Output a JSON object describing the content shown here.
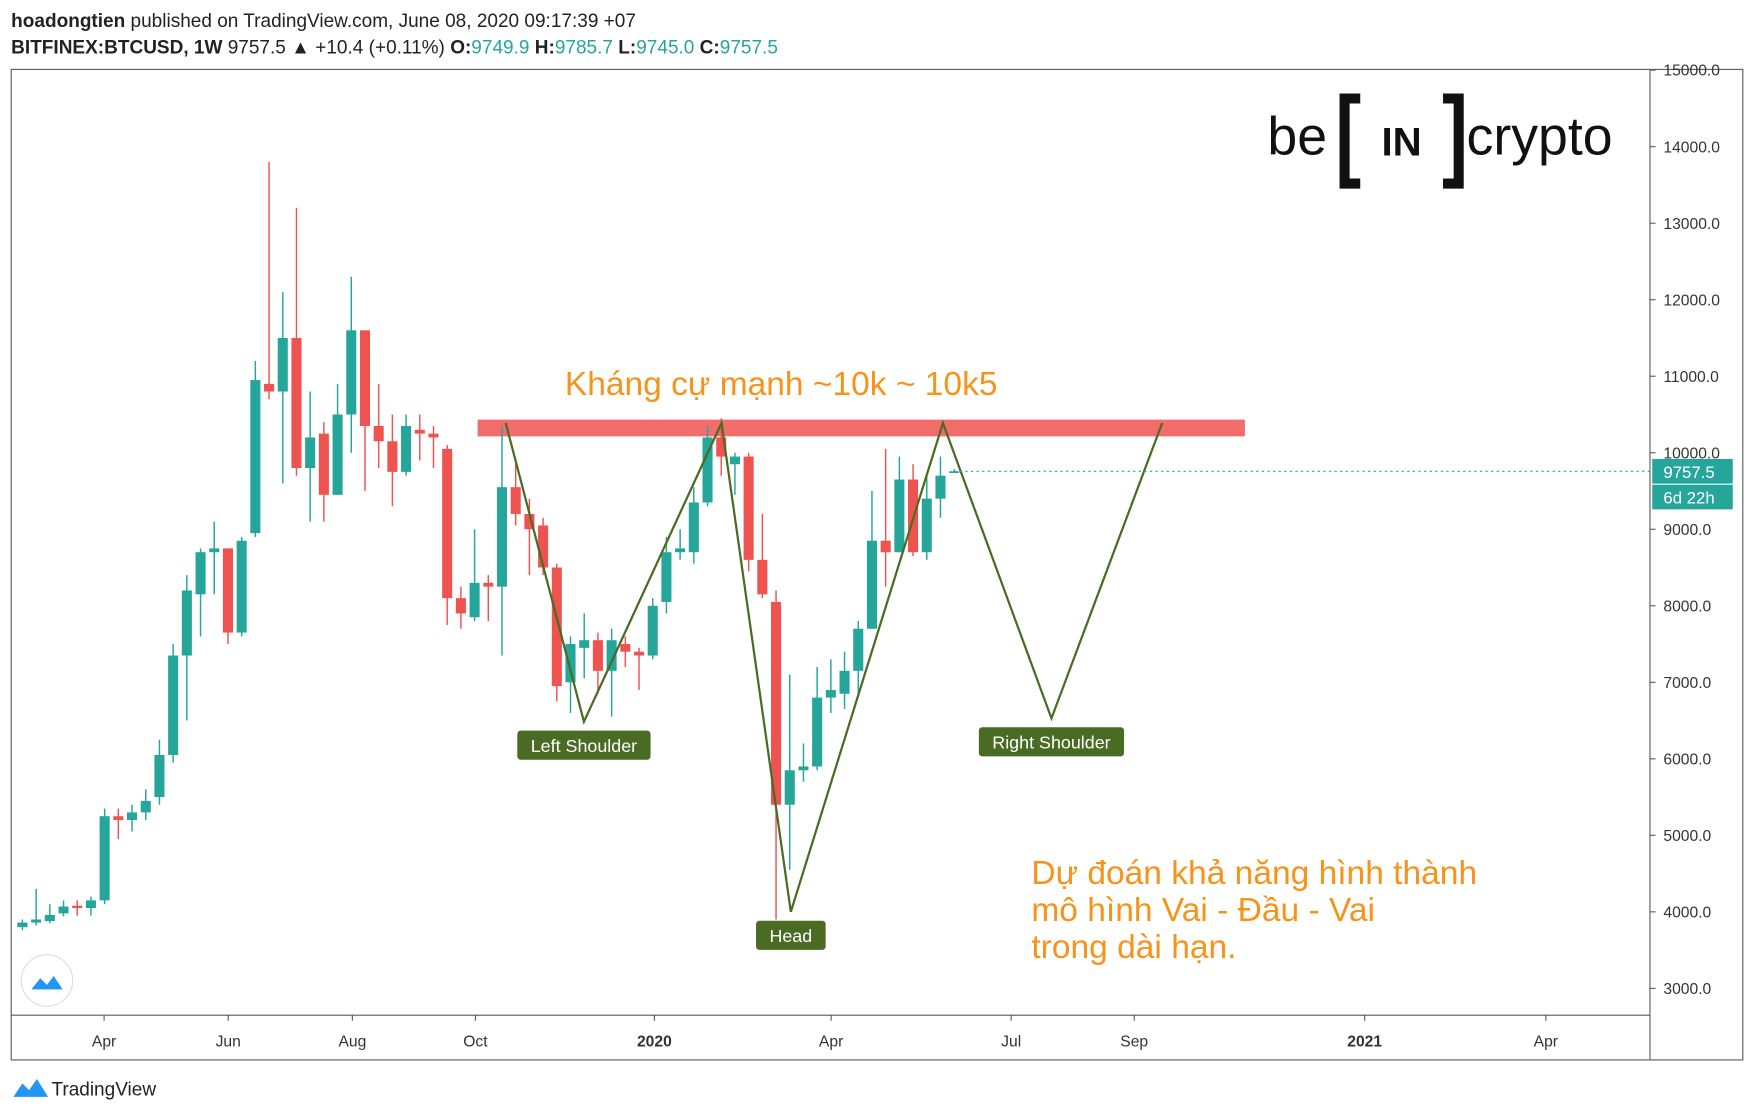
{
  "chart_data": {
    "type": "candlestick",
    "header": {
      "author": "hoadongtien",
      "published": "published on TradingView.com, June 08, 2020 09:17:39 +07",
      "symbol": "BITFINEX:BTCUSD, 1W",
      "last": "9757.5",
      "change": "▲ +10.4 (+0.11%)",
      "ohlc": [
        {
          "label": "O:",
          "value": "9749.9"
        },
        {
          "label": "H:",
          "value": "9785.7"
        },
        {
          "label": "L:",
          "value": "9745.0"
        },
        {
          "label": "C:",
          "value": "9757.5"
        }
      ]
    },
    "up_color": "#26a69a",
    "down_color": "#ef5350",
    "open": [
      3800,
      3860,
      3880,
      3980,
      4080,
      4050,
      4150,
      5250,
      5200,
      5300,
      5500,
      6050,
      7350,
      8150,
      8700,
      8750,
      7650,
      8950,
      10900,
      10800,
      11500,
      9800,
      10250,
      9450,
      10500,
      11600,
      10350,
      10150,
      9750,
      10300,
      10250,
      10050,
      8100,
      7850,
      8300,
      8250,
      9550,
      9200,
      9050,
      8500,
      7000,
      7450,
      7550,
      7150,
      7500,
      7400,
      7350,
      8050,
      8700,
      8700,
      9350,
      10200,
      9850,
      9950,
      8600,
      8050,
      5400,
      5850,
      5900,
      6800,
      6850,
      7150,
      7700,
      8850,
      8700,
      9650,
      8700,
      9400,
      9749.9
    ],
    "high": [
      3900,
      4300,
      4100,
      4150,
      4150,
      4200,
      5350,
      5350,
      5400,
      5600,
      6250,
      7500,
      8400,
      8750,
      9100,
      8750,
      8900,
      11200,
      13800,
      12100,
      13200,
      10800,
      10400,
      10900,
      12300,
      11600,
      10900,
      10500,
      10500,
      10500,
      10350,
      10100,
      8250,
      9000,
      8400,
      10350,
      9900,
      9400,
      9150,
      8550,
      7600,
      7900,
      7650,
      7700,
      7600,
      7450,
      8100,
      8900,
      9000,
      9550,
      10350,
      10450,
      10000,
      10000,
      9200,
      8200,
      7100,
      6200,
      7200,
      7300,
      7400,
      7800,
      9500,
      10050,
      9950,
      9850,
      9700,
      9950,
      9785.7
    ],
    "low": [
      3760,
      3820,
      3850,
      3940,
      3950,
      3950,
      4100,
      4950,
      5050,
      5200,
      5400,
      5950,
      6500,
      7600,
      8150,
      7500,
      7600,
      8900,
      10700,
      9600,
      9700,
      9100,
      9100,
      9450,
      10000,
      9500,
      9800,
      9300,
      9700,
      9900,
      9800,
      7750,
      7700,
      7800,
      7800,
      7350,
      9050,
      8400,
      8400,
      6750,
      6600,
      7050,
      6850,
      6550,
      7200,
      6900,
      7300,
      7900,
      8600,
      8550,
      9300,
      9700,
      9450,
      8450,
      8100,
      3900,
      4550,
      5700,
      5850,
      6600,
      6650,
      6850,
      7700,
      8250,
      8700,
      8650,
      8600,
      9150,
      9745.0
    ],
    "close": [
      3860,
      3900,
      3960,
      4070,
      4050,
      4150,
      5250,
      5200,
      5300,
      5450,
      6050,
      7350,
      8200,
      8700,
      8750,
      7650,
      8850,
      10950,
      10800,
      11500,
      9800,
      10200,
      9450,
      10500,
      11600,
      10350,
      10150,
      9750,
      10350,
      10250,
      10200,
      8100,
      7900,
      8300,
      8250,
      9550,
      9200,
      9000,
      8500,
      6950,
      7500,
      7550,
      7150,
      7550,
      7400,
      7350,
      8000,
      8700,
      8750,
      9350,
      10200,
      9950,
      9950,
      8600,
      8150,
      5400,
      5850,
      5900,
      6800,
      6900,
      7150,
      7700,
      8850,
      8700,
      9650,
      8700,
      9400,
      9700,
      9757.5
    ],
    "ylim": [
      2650,
      15010
    ],
    "yticks": [
      {
        "value": 3000,
        "label": "3000.0"
      },
      {
        "value": 4000,
        "label": "4000.0"
      },
      {
        "value": 5000,
        "label": "5000.0"
      },
      {
        "value": 6000,
        "label": "6000.0"
      },
      {
        "value": 7000,
        "label": "7000.0"
      },
      {
        "value": 8000,
        "label": "8000.0"
      },
      {
        "value": 9000,
        "label": "9000.0"
      },
      {
        "value": 10000,
        "label": "10000.0"
      },
      {
        "value": 11000,
        "label": "11000.0"
      },
      {
        "value": 12000,
        "label": "12000.0"
      },
      {
        "value": 13000,
        "label": "13000.0"
      },
      {
        "value": 14000,
        "label": "14000.0"
      },
      {
        "value": 15000,
        "label": "15000.0"
      }
    ],
    "xlim": [
      -0.82,
      118.78
    ],
    "xticks": [
      {
        "value": 5.96,
        "label": "Apr"
      },
      {
        "value": 15.02,
        "label": "Jun"
      },
      {
        "value": 24.08,
        "label": "Aug"
      },
      {
        "value": 33.06,
        "label": "Oct"
      },
      {
        "value": 46.12,
        "label": "2020"
      },
      {
        "value": 59.02,
        "label": "Apr"
      },
      {
        "value": 72.16,
        "label": "Jul"
      },
      {
        "value": 81.14,
        "label": "Sep"
      },
      {
        "value": 97.96,
        "label": "2021"
      },
      {
        "value": 111.18,
        "label": "Apr"
      }
    ],
    "price_tag": {
      "value": 9757.5,
      "label": "9757.5",
      "countdown": "6d 22h"
    },
    "resistance": {
      "label": "Kháng cự mạnh ~10k ~ 10k5",
      "low": 10214,
      "high": 10433,
      "x_start": 33.22,
      "x_end": 89.22,
      "color": "#f25c5c"
    },
    "pattern": {
      "color": "#4a6b24",
      "x": [
        35.27,
        40.98,
        51.02,
        56.08,
        67.18,
        75.1,
        83.18
      ],
      "y": [
        10389,
        6485,
        10389,
        4000,
        10389,
        6529,
        10389
      ],
      "labels": [
        "Left Shoulder",
        "Head",
        "Right Shoulder"
      ]
    },
    "prediction": [
      "Dự đoán khả năng hình thành",
      "mô hình Vai - Đầu - Vai",
      "trong dài hạn."
    ],
    "logo": {
      "left": "be",
      "mid": "IN",
      "right": "crypto"
    },
    "footer": "TradingView"
  }
}
